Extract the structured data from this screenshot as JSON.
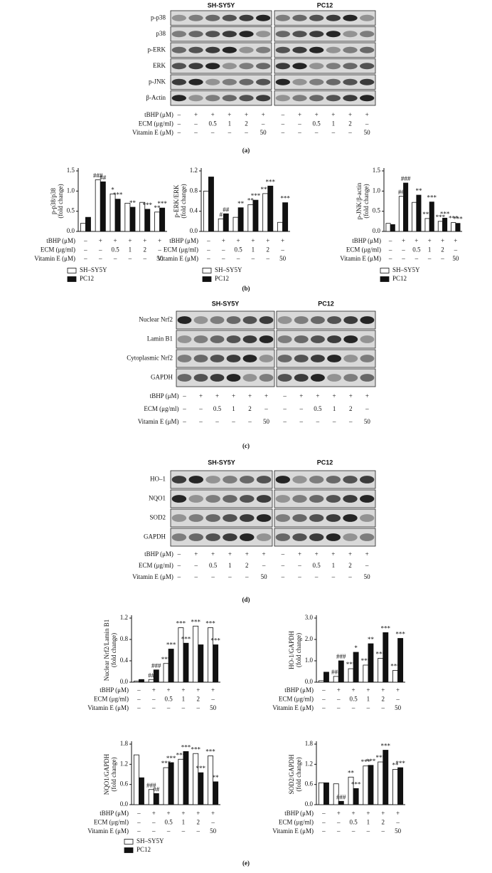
{
  "panel_labels": [
    "(a)",
    "(b)",
    "(c)",
    "(d)",
    "(e)"
  ],
  "treatments": {
    "labels": [
      "tBHP (μM)",
      "ECM (μg/ml)",
      "Vitamin E (μM)"
    ],
    "rows": [
      [
        "–",
        "+",
        "+",
        "+",
        "+",
        "+"
      ],
      [
        "–",
        "–",
        "0.5",
        "1",
        "2",
        "–"
      ],
      [
        "–",
        "–",
        "–",
        "–",
        "–",
        "50"
      ]
    ]
  },
  "blots": [
    {
      "cell_lines": [
        "SH-SY5Y",
        "PC12"
      ],
      "proteins": [
        "p-p38",
        "p38",
        "p-ERK",
        "ERK",
        "p-JNK",
        "β-Actin"
      ]
    },
    {
      "cell_lines": [
        "SH-SY5Y",
        "PC12"
      ],
      "proteins": [
        "Nuclear Nrf2",
        "Lamin B1",
        "Cytoplasmic Nrf2",
        "GAPDH"
      ]
    },
    {
      "cell_lines": [
        "SH-SY5Y",
        "PC12"
      ],
      "proteins": [
        "HO–1",
        "NQO1",
        "SOD2",
        "GAPDH"
      ]
    }
  ],
  "chart_data": [
    {
      "type": "bar",
      "y_label": [
        "p-p38/p38",
        "(fold change)"
      ],
      "categories": [
        null,
        null,
        null,
        null,
        null,
        null
      ],
      "ylim": [
        0,
        1.5
      ],
      "yticks": [
        {
          "value": 0,
          "label": "0.0"
        },
        0.5,
        {
          "value": 1,
          "label": "1.0"
        },
        1.5
      ],
      "legend": "below",
      "series": [
        {
          "name": "SH–SY5Y",
          "color": "#ffffff",
          "values": [
            0.2,
            1.28,
            0.93,
            0.7,
            0.72,
            0.48
          ],
          "significance": [
            null,
            "###",
            "*",
            null,
            null,
            "**"
          ]
        },
        {
          "name": "PC12",
          "color": "#111111",
          "values": [
            0.35,
            1.23,
            0.8,
            0.6,
            0.55,
            0.58
          ],
          "significance": [
            null,
            "##",
            "***",
            "**",
            "***",
            "***"
          ]
        }
      ]
    },
    {
      "type": "bar",
      "y_label": [
        "p-ERK/ERK",
        "(fold change)"
      ],
      "categories": [
        null,
        null,
        null,
        null,
        null,
        null
      ],
      "ylim": [
        0,
        1.2
      ],
      "yticks": [
        {
          "value": 0,
          "label": "0.0"
        },
        0.4,
        0.8,
        1.2
      ],
      "legend": "below",
      "series": [
        {
          "name": "SH–SY5Y",
          "color": "#ffffff",
          "values": [
            0.8,
            0.25,
            0.28,
            0.53,
            0.75,
            0.18
          ],
          "significance": [
            null,
            "#",
            null,
            "**",
            "***",
            null
          ]
        },
        {
          "name": "PC12",
          "color": "#111111",
          "values": [
            1.08,
            0.35,
            0.47,
            0.62,
            0.9,
            0.57
          ],
          "significance": [
            null,
            "##",
            "**",
            "***",
            "***",
            "***"
          ]
        }
      ]
    },
    {
      "type": "bar",
      "y_label": [
        "p-JNK/β-actin",
        "(fold change)"
      ],
      "categories": [
        null,
        null,
        null,
        null,
        null,
        null
      ],
      "ylim": [
        0,
        1.5
      ],
      "yticks": [
        {
          "value": 0,
          "label": "0.0"
        },
        0.5,
        {
          "value": 1,
          "label": "1.0"
        },
        1.5
      ],
      "legend": "below",
      "series": [
        {
          "name": "SH–SY5Y",
          "color": "#ffffff",
          "values": [
            0.2,
            0.87,
            0.72,
            0.32,
            0.25,
            0.22
          ],
          "significance": [
            null,
            "##",
            null,
            "***",
            "***",
            "***"
          ]
        },
        {
          "name": "PC12",
          "color": "#111111",
          "values": [
            0.17,
            1.2,
            0.9,
            0.73,
            0.33,
            0.2
          ],
          "significance": [
            null,
            "###",
            "**",
            "***",
            "***",
            "***"
          ]
        }
      ]
    },
    {
      "type": "bar",
      "y_label": [
        "Nuclear Nrf2/Lamin B1",
        "(fold change)"
      ],
      "categories": [
        null,
        null,
        null,
        null,
        null,
        null
      ],
      "ylim": [
        0,
        1.2
      ],
      "yticks": [
        {
          "value": 0,
          "label": "0.0"
        },
        0.4,
        0.8,
        1.2
      ],
      "series": [
        {
          "name": "SH–SY5Y",
          "color": "#ffffff",
          "values": [
            0.02,
            0.05,
            0.35,
            1.02,
            1.05,
            1.02
          ],
          "significance": [
            null,
            "##",
            "***",
            "***",
            "***",
            "***"
          ]
        },
        {
          "name": "PC12",
          "color": "#111111",
          "values": [
            0.05,
            0.23,
            0.62,
            0.73,
            0.7,
            0.7
          ],
          "significance": [
            null,
            "###",
            "***",
            "***",
            null,
            "***"
          ]
        }
      ]
    },
    {
      "type": "bar",
      "y_label": [
        "HO-1/GAPDH",
        "(fold change)"
      ],
      "categories": [
        null,
        null,
        null,
        null,
        null,
        null
      ],
      "ylim": [
        0,
        3
      ],
      "yticks": [
        {
          "value": 0,
          "label": "0.0"
        },
        {
          "value": 1,
          "label": "1.0"
        },
        {
          "value": 2,
          "label": "2.0"
        },
        {
          "value": 3,
          "label": "3.0"
        }
      ],
      "series": [
        {
          "name": "SH–SY5Y",
          "color": "#ffffff",
          "values": [
            0.07,
            0.27,
            0.63,
            0.8,
            1.12,
            0.55
          ],
          "significance": [
            null,
            "###",
            "***",
            "***",
            "***",
            "***"
          ]
        },
        {
          "name": "PC12",
          "color": "#111111",
          "values": [
            0.47,
            1.0,
            1.4,
            1.8,
            2.32,
            2.05
          ],
          "significance": [
            null,
            "###",
            "*",
            "**",
            "***",
            "***"
          ]
        }
      ]
    },
    {
      "type": "bar",
      "y_label": [
        "NQO1/GAPDH",
        "(fold change)"
      ],
      "categories": [
        null,
        null,
        null,
        null,
        null,
        null
      ],
      "ylim": [
        0,
        1.8
      ],
      "yticks": [
        {
          "value": 0,
          "label": "0.0"
        },
        0.6,
        1.2,
        1.8
      ],
      "legend": "below",
      "series": [
        {
          "name": "SH–SY5Y",
          "color": "#ffffff",
          "values": [
            1.48,
            0.45,
            1.1,
            1.35,
            1.52,
            1.45
          ],
          "significance": [
            null,
            "###",
            "***",
            "***",
            "***",
            "***"
          ]
        },
        {
          "name": "PC12",
          "color": "#111111",
          "values": [
            0.8,
            0.33,
            1.25,
            1.58,
            0.95,
            0.68
          ],
          "significance": [
            null,
            "##",
            "***",
            "***",
            "***",
            "**"
          ]
        }
      ]
    },
    {
      "type": "bar",
      "y_label": [
        "SOD2/GAPDH",
        "(fold change)"
      ],
      "categories": [
        null,
        null,
        null,
        null,
        null,
        null
      ],
      "ylim": [
        0,
        1.8
      ],
      "yticks": [
        {
          "value": 0,
          "label": "0.0"
        },
        0.6,
        1.2,
        1.8
      ],
      "series": [
        {
          "name": "SH–SY5Y",
          "color": "#ffffff",
          "values": [
            0.65,
            0.62,
            0.82,
            1.15,
            1.27,
            1.05
          ],
          "significance": [
            null,
            null,
            "**",
            "***",
            "***",
            "**"
          ]
        },
        {
          "name": "PC12",
          "color": "#111111",
          "values": [
            0.65,
            0.1,
            0.48,
            1.17,
            1.62,
            1.1
          ],
          "significance": [
            null,
            "###",
            "***",
            "***",
            "***",
            "***"
          ]
        }
      ]
    }
  ]
}
